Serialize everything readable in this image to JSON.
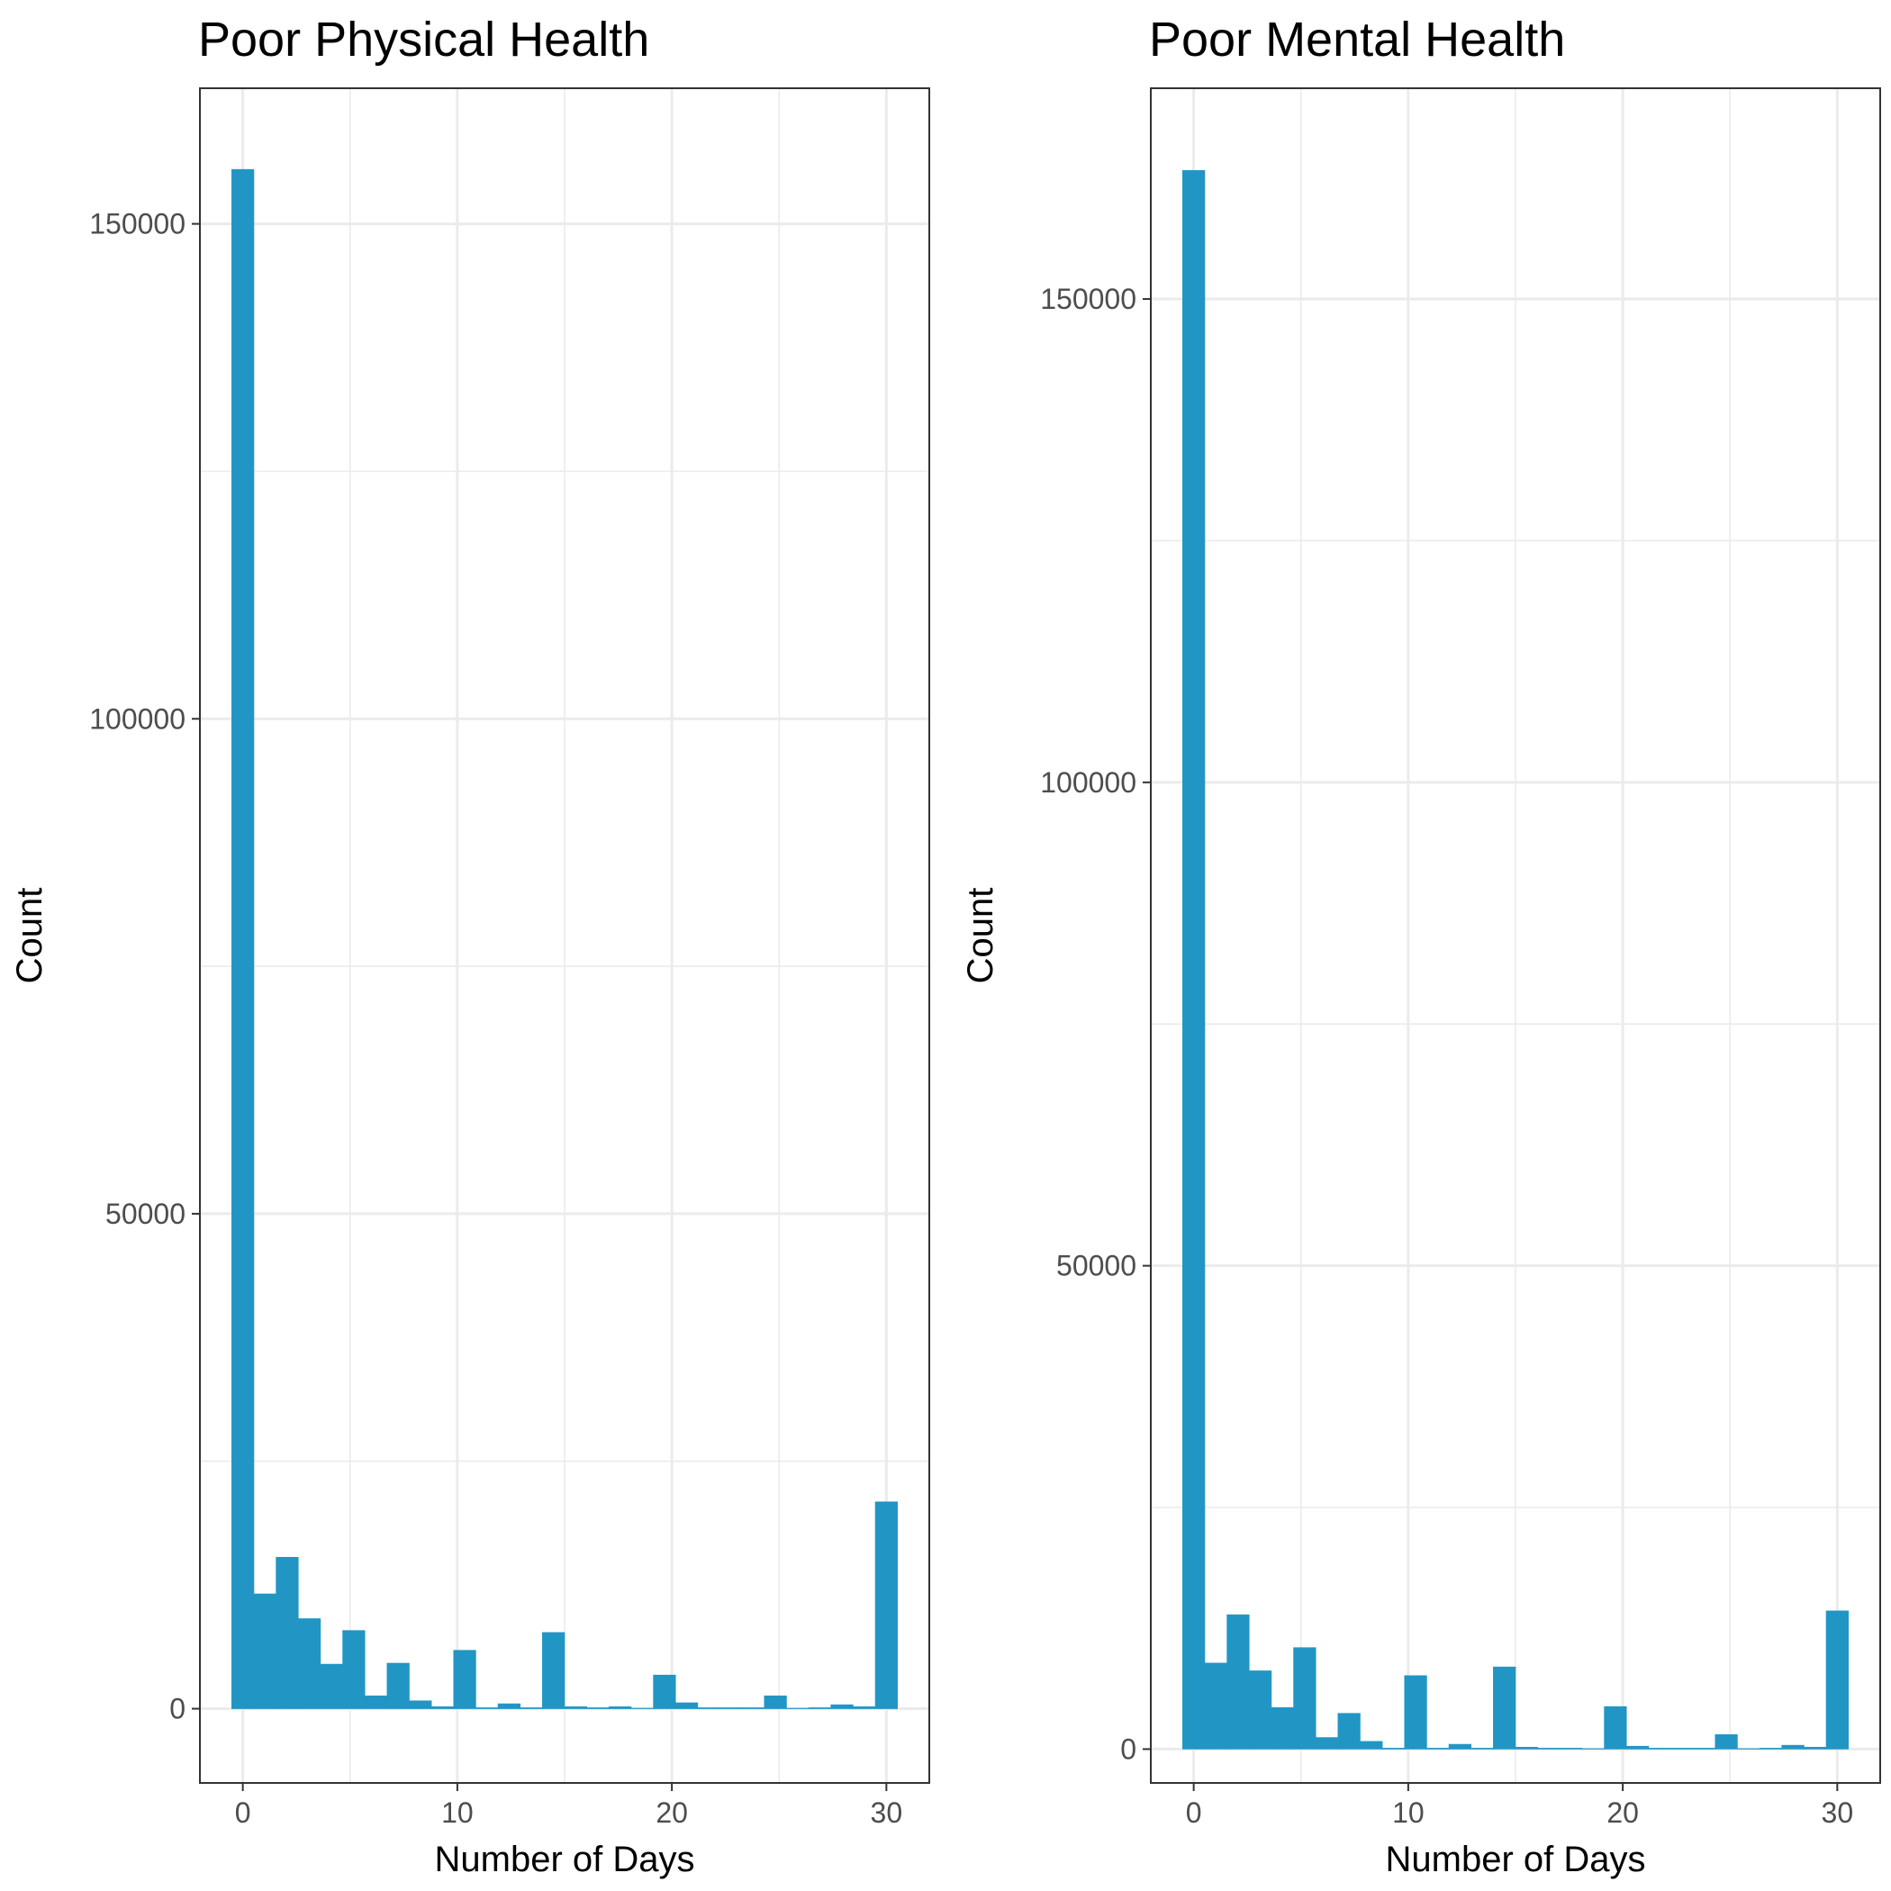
{
  "chart_data": [
    {
      "type": "bar",
      "title": "Poor Physical Health",
      "xlabel": "Number of Days",
      "ylabel": "Count",
      "xlim": [
        -2,
        32
      ],
      "ylim": [
        -7500,
        163700
      ],
      "x_ticks": [
        0,
        10,
        20,
        30
      ],
      "y_ticks": [
        0,
        50000,
        100000,
        150000
      ],
      "grid": true,
      "bar_color": "#2196C4",
      "bins": [
        {
          "start": -0.5172,
          "end": 0.5172,
          "count": 155500
        },
        {
          "start": 0.5172,
          "end": 1.5517,
          "count": 11600
        },
        {
          "start": 1.5517,
          "end": 2.5862,
          "count": 15300
        },
        {
          "start": 2.5862,
          "end": 3.6207,
          "count": 9100
        },
        {
          "start": 3.6207,
          "end": 4.6552,
          "count": 4500
        },
        {
          "start": 4.6552,
          "end": 5.6897,
          "count": 7900
        },
        {
          "start": 5.6897,
          "end": 6.7241,
          "count": 1300
        },
        {
          "start": 6.7241,
          "end": 7.7586,
          "count": 4600
        },
        {
          "start": 7.7586,
          "end": 8.7931,
          "count": 800
        },
        {
          "start": 8.7931,
          "end": 9.8276,
          "count": 200
        },
        {
          "start": 9.8276,
          "end": 10.8621,
          "count": 5900
        },
        {
          "start": 10.8621,
          "end": 11.8966,
          "count": 100
        },
        {
          "start": 11.8966,
          "end": 12.931,
          "count": 500
        },
        {
          "start": 12.931,
          "end": 13.9655,
          "count": 100
        },
        {
          "start": 13.9655,
          "end": 15,
          "count": 7700
        },
        {
          "start": 15,
          "end": 16.0345,
          "count": 200
        },
        {
          "start": 16.0345,
          "end": 17.069,
          "count": 100
        },
        {
          "start": 17.069,
          "end": 18.1034,
          "count": 200
        },
        {
          "start": 18.1034,
          "end": 19.1379,
          "count": 50
        },
        {
          "start": 19.1379,
          "end": 20.1724,
          "count": 3400
        },
        {
          "start": 20.1724,
          "end": 21.2069,
          "count": 600
        },
        {
          "start": 21.2069,
          "end": 22.2414,
          "count": 100
        },
        {
          "start": 22.2414,
          "end": 23.2759,
          "count": 100
        },
        {
          "start": 23.2759,
          "end": 24.3103,
          "count": 100
        },
        {
          "start": 24.3103,
          "end": 25.3448,
          "count": 1300
        },
        {
          "start": 25.3448,
          "end": 26.3793,
          "count": 50
        },
        {
          "start": 26.3793,
          "end": 27.4138,
          "count": 100
        },
        {
          "start": 27.4138,
          "end": 28.4483,
          "count": 400
        },
        {
          "start": 28.4483,
          "end": 29.4828,
          "count": 200
        },
        {
          "start": 29.4828,
          "end": 30.5172,
          "count": 20900
        }
      ]
    },
    {
      "type": "bar",
      "title": "Poor Mental Health",
      "xlabel": "Number of Days",
      "ylabel": "Count",
      "xlim": [
        -2,
        32
      ],
      "ylim": [
        -3500,
        171800
      ],
      "x_ticks": [
        0,
        10,
        20,
        30
      ],
      "y_ticks": [
        0,
        50000,
        100000,
        150000
      ],
      "grid": true,
      "bar_color": "#2196C4",
      "bins": [
        {
          "start": -0.5172,
          "end": 0.5172,
          "count": 163300
        },
        {
          "start": 0.5172,
          "end": 1.5517,
          "count": 8900
        },
        {
          "start": 1.5517,
          "end": 2.5862,
          "count": 13900
        },
        {
          "start": 2.5862,
          "end": 3.6207,
          "count": 8100
        },
        {
          "start": 3.6207,
          "end": 4.6552,
          "count": 4300
        },
        {
          "start": 4.6552,
          "end": 5.6897,
          "count": 10500
        },
        {
          "start": 5.6897,
          "end": 6.7241,
          "count": 1200
        },
        {
          "start": 6.7241,
          "end": 7.7586,
          "count": 3700
        },
        {
          "start": 7.7586,
          "end": 8.7931,
          "count": 800
        },
        {
          "start": 8.7931,
          "end": 9.8276,
          "count": 100
        },
        {
          "start": 9.8276,
          "end": 10.8621,
          "count": 7600
        },
        {
          "start": 10.8621,
          "end": 11.8966,
          "count": 100
        },
        {
          "start": 11.8966,
          "end": 12.931,
          "count": 500
        },
        {
          "start": 12.931,
          "end": 13.9655,
          "count": 100
        },
        {
          "start": 13.9655,
          "end": 15,
          "count": 8500
        },
        {
          "start": 15,
          "end": 16.0345,
          "count": 200
        },
        {
          "start": 16.0345,
          "end": 17.069,
          "count": 100
        },
        {
          "start": 17.069,
          "end": 18.1034,
          "count": 100
        },
        {
          "start": 18.1034,
          "end": 19.1379,
          "count": 50
        },
        {
          "start": 19.1379,
          "end": 20.1724,
          "count": 4400
        },
        {
          "start": 20.1724,
          "end": 21.2069,
          "count": 300
        },
        {
          "start": 21.2069,
          "end": 22.2414,
          "count": 100
        },
        {
          "start": 22.2414,
          "end": 23.2759,
          "count": 100
        },
        {
          "start": 23.2759,
          "end": 24.3103,
          "count": 100
        },
        {
          "start": 24.3103,
          "end": 25.3448,
          "count": 1500
        },
        {
          "start": 25.3448,
          "end": 26.3793,
          "count": 50
        },
        {
          "start": 26.3793,
          "end": 27.4138,
          "count": 100
        },
        {
          "start": 27.4138,
          "end": 28.4483,
          "count": 400
        },
        {
          "start": 28.4483,
          "end": 29.4828,
          "count": 200
        },
        {
          "start": 29.4828,
          "end": 30.5172,
          "count": 14300
        }
      ]
    }
  ]
}
